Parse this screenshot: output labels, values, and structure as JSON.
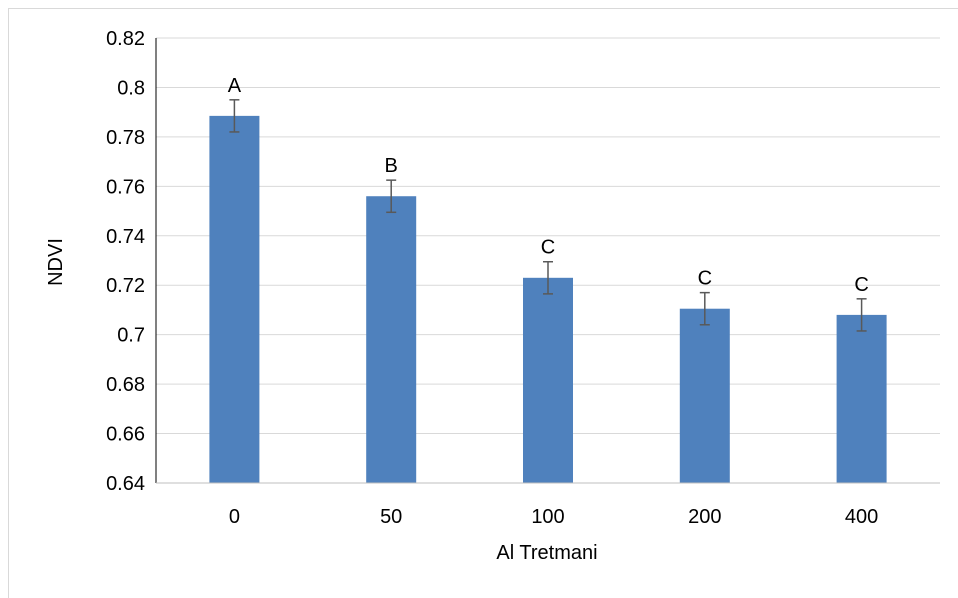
{
  "chart_data": {
    "type": "bar",
    "title": "",
    "xlabel": "Al Tretmani",
    "ylabel": "NDVI",
    "categories": [
      "0",
      "50",
      "100",
      "200",
      "400"
    ],
    "values": [
      0.7885,
      0.756,
      0.723,
      0.7105,
      0.708
    ],
    "errors": [
      0.0065,
      0.0065,
      0.0065,
      0.0065,
      0.0065
    ],
    "bar_labels": [
      "A",
      "B",
      "C",
      "C",
      "C"
    ],
    "ylim": [
      0.64,
      0.82
    ],
    "yticks": [
      0.64,
      0.66,
      0.68,
      0.7,
      0.72,
      0.74,
      0.76,
      0.78,
      0.8,
      0.82
    ],
    "ytick_labels": [
      "0.64",
      "0.66",
      "0.68",
      "0.7",
      "0.72",
      "0.74",
      "0.76",
      "0.78",
      "0.8",
      "0.82"
    ],
    "grid": true,
    "legend": "none",
    "colors": {
      "bar": "#4f81bd",
      "error_bar": "#595959",
      "grid": "#d9d9d9",
      "axis": "#000000"
    }
  }
}
